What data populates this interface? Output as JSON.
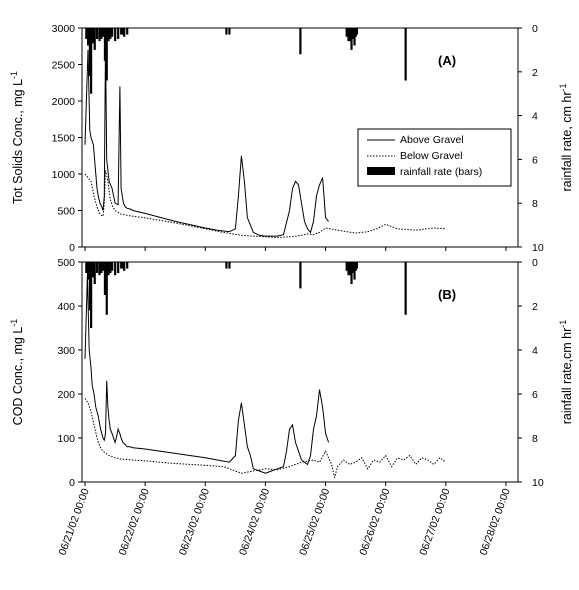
{
  "chart_data": [
    {
      "type": "line",
      "panel_label": "(A)",
      "ylabel": "Tot Solids Conc., mg L",
      "ylabel_sup": "-1",
      "y2label": "rainfall rate, cm hr",
      "y2label_sup": "-1",
      "ylim": [
        0,
        3000
      ],
      "yticks": [
        "0",
        "500",
        "1000",
        "1500",
        "2000",
        "2500",
        "3000"
      ],
      "ytick_values": [
        0,
        500,
        1000,
        1500,
        2000,
        2500,
        3000
      ],
      "y2lim": [
        0,
        10
      ],
      "y2_inverted": true,
      "y2ticks": [
        "0",
        "2",
        "4",
        "6",
        "8",
        "10"
      ],
      "y2tick_values": [
        0,
        2,
        4,
        6,
        8,
        10
      ],
      "legend": {
        "position": "right",
        "entries": [
          "Above Gravel",
          "Below Gravel",
          "rainfall rate (bars)"
        ]
      },
      "series": [
        {
          "name": "Above Gravel",
          "style": "solid",
          "x": [
            0.0,
            0.05,
            0.08,
            0.1,
            0.12,
            0.14,
            0.16,
            0.18,
            0.2,
            0.22,
            0.25,
            0.28,
            0.3,
            0.32,
            0.34,
            0.36,
            0.4,
            0.45,
            0.5,
            0.55,
            0.58,
            0.6,
            0.62,
            0.64,
            0.67,
            0.7,
            0.75,
            0.8,
            0.9,
            1.0,
            1.5,
            2.0,
            2.2,
            2.4,
            2.5,
            2.55,
            2.6,
            2.65,
            2.7,
            2.75,
            2.8,
            2.85,
            2.9,
            3.0,
            3.2,
            3.3,
            3.4,
            3.45,
            3.5,
            3.55,
            3.6,
            3.65,
            3.7,
            3.75,
            3.8,
            3.85,
            3.9,
            3.95,
            4.0,
            4.05
          ],
          "y": [
            1400,
            2700,
            1600,
            1500,
            1450,
            1400,
            1200,
            1000,
            800,
            700,
            600,
            550,
            500,
            700,
            2800,
            1200,
            900,
            800,
            600,
            580,
            2200,
            800,
            700,
            600,
            550,
            530,
            520,
            500,
            480,
            460,
            350,
            260,
            230,
            210,
            250,
            700,
            1250,
            900,
            400,
            300,
            200,
            180,
            160,
            150,
            150,
            170,
            500,
            800,
            900,
            850,
            600,
            350,
            250,
            200,
            350,
            700,
            850,
            950,
            400,
            350
          ]
        },
        {
          "name": "Below Gravel",
          "style": "dotted",
          "x": [
            0.0,
            0.05,
            0.1,
            0.15,
            0.2,
            0.25,
            0.3,
            0.32,
            0.34,
            0.38,
            0.42,
            0.46,
            0.5,
            0.6,
            0.8,
            1.0,
            1.5,
            2.0,
            2.3,
            2.6,
            2.8,
            3.0,
            3.2,
            3.4,
            3.5,
            3.6,
            3.7,
            3.8,
            3.9,
            4.0,
            4.2,
            4.5,
            4.7,
            4.85,
            5.0,
            5.2,
            5.5,
            5.8,
            6.0
          ],
          "y": [
            1000,
            950,
            900,
            700,
            550,
            450,
            420,
            600,
            1050,
            900,
            650,
            550,
            500,
            450,
            420,
            400,
            330,
            250,
            200,
            160,
            150,
            140,
            130,
            140,
            150,
            160,
            180,
            170,
            200,
            260,
            230,
            190,
            210,
            250,
            310,
            250,
            230,
            260,
            250
          ]
        },
        {
          "name": "rainfall rate (bars)",
          "style": "bars",
          "axis": "right",
          "x": [
            0.02,
            0.05,
            0.08,
            0.1,
            0.13,
            0.16,
            0.2,
            0.24,
            0.27,
            0.3,
            0.33,
            0.36,
            0.39,
            0.42,
            0.45,
            0.5,
            0.55,
            0.6,
            0.62,
            0.65,
            0.7,
            2.35,
            2.4,
            3.58,
            4.35,
            4.38,
            4.4,
            4.43,
            4.45,
            4.48,
            4.5,
            4.52,
            5.33
          ],
          "y": [
            0.5,
            0.8,
            2.2,
            3.0,
            0.7,
            1.0,
            0.5,
            0.6,
            0.5,
            0.4,
            1.5,
            2.4,
            0.6,
            0.5,
            0.4,
            0.6,
            0.5,
            0.3,
            0.3,
            0.4,
            0.3,
            0.3,
            0.3,
            1.2,
            0.4,
            0.6,
            0.6,
            1.0,
            0.5,
            0.8,
            0.4,
            0.3,
            2.4
          ]
        }
      ]
    },
    {
      "type": "line",
      "panel_label": "(B)",
      "ylabel": "COD Conc., mg L",
      "ylabel_sup": "-1",
      "y2label": "rainfall rate,cm hr",
      "y2label_sup": "-1",
      "ylim": [
        0,
        500
      ],
      "yticks": [
        "0",
        "100",
        "200",
        "300",
        "400",
        "500"
      ],
      "ytick_values": [
        0,
        100,
        200,
        300,
        400,
        500
      ],
      "y2lim": [
        0,
        10
      ],
      "y2_inverted": true,
      "y2ticks": [
        "0",
        "2",
        "4",
        "6",
        "8",
        "10"
      ],
      "y2tick_values": [
        0,
        2,
        4,
        6,
        8,
        10
      ],
      "xticks": [
        "06/21/02 00:00",
        "06/22/02 00:00",
        "06/23/02 00:00",
        "06/24/02 00:00",
        "06/25/02 00:00",
        "06/26/02 00:00",
        "06/27/02 00:00",
        "06/28/02 00:00"
      ],
      "xtick_values": [
        0,
        1,
        2,
        3,
        4,
        5,
        6,
        7
      ],
      "xlim": [
        -0.05,
        7.2
      ],
      "series": [
        {
          "name": "Above Gravel",
          "style": "solid",
          "x": [
            0.0,
            0.04,
            0.07,
            0.1,
            0.12,
            0.15,
            0.18,
            0.22,
            0.26,
            0.3,
            0.32,
            0.34,
            0.36,
            0.38,
            0.4,
            0.42,
            0.45,
            0.5,
            0.52,
            0.55,
            0.58,
            0.6,
            0.63,
            0.67,
            0.7,
            0.75,
            0.8,
            1.0,
            1.5,
            2.0,
            2.2,
            2.4,
            2.5,
            2.55,
            2.6,
            2.65,
            2.7,
            2.75,
            2.8,
            2.9,
            3.0,
            3.1,
            3.2,
            3.3,
            3.35,
            3.4,
            3.45,
            3.5,
            3.55,
            3.6,
            3.7,
            3.75,
            3.8,
            3.85,
            3.9,
            3.95,
            4.0,
            4.05
          ],
          "y": [
            280,
            470,
            300,
            260,
            220,
            200,
            170,
            150,
            120,
            100,
            95,
            110,
            230,
            170,
            140,
            120,
            110,
            90,
            100,
            120,
            110,
            100,
            90,
            85,
            80,
            80,
            78,
            75,
            65,
            55,
            50,
            45,
            60,
            140,
            180,
            130,
            80,
            60,
            30,
            25,
            20,
            25,
            30,
            35,
            70,
            120,
            130,
            90,
            70,
            50,
            40,
            60,
            120,
            150,
            210,
            170,
            110,
            90
          ]
        },
        {
          "name": "Below Gravel",
          "style": "dotted",
          "x": [
            0.0,
            0.05,
            0.1,
            0.15,
            0.2,
            0.25,
            0.3,
            0.35,
            0.4,
            0.45,
            0.5,
            0.6,
            0.8,
            1.0,
            1.5,
            2.0,
            2.3,
            2.6,
            2.8,
            3.0,
            3.2,
            3.4,
            3.6,
            3.8,
            3.9,
            4.0,
            4.1,
            4.15,
            4.2,
            4.3,
            4.4,
            4.5,
            4.6,
            4.7,
            4.8,
            4.9,
            5.0,
            5.1,
            5.2,
            5.3,
            5.4,
            5.5,
            5.6,
            5.7,
            5.8,
            5.9,
            6.0
          ],
          "y": [
            190,
            180,
            160,
            130,
            100,
            80,
            70,
            65,
            60,
            58,
            55,
            52,
            50,
            48,
            42,
            38,
            35,
            20,
            25,
            30,
            28,
            35,
            45,
            50,
            45,
            70,
            40,
            10,
            35,
            50,
            40,
            45,
            55,
            30,
            50,
            45,
            60,
            35,
            55,
            50,
            60,
            40,
            55,
            50,
            40,
            55,
            45
          ]
        },
        {
          "name": "rainfall rate (bars)",
          "style": "bars",
          "axis": "right",
          "x": [
            0.02,
            0.05,
            0.08,
            0.1,
            0.13,
            0.16,
            0.2,
            0.24,
            0.27,
            0.3,
            0.33,
            0.36,
            0.39,
            0.42,
            0.45,
            0.5,
            0.55,
            0.6,
            0.62,
            0.65,
            0.7,
            2.35,
            2.4,
            3.58,
            4.35,
            4.38,
            4.4,
            4.43,
            4.45,
            4.48,
            4.5,
            4.52,
            5.33
          ],
          "y": [
            0.5,
            0.8,
            2.2,
            3.0,
            0.7,
            1.0,
            0.5,
            0.6,
            0.5,
            0.4,
            1.5,
            2.4,
            0.6,
            0.5,
            0.4,
            0.6,
            0.5,
            0.3,
            0.3,
            0.4,
            0.3,
            0.3,
            0.3,
            1.2,
            0.4,
            0.6,
            0.6,
            1.0,
            0.5,
            0.8,
            0.4,
            0.3,
            2.4
          ]
        }
      ]
    }
  ]
}
